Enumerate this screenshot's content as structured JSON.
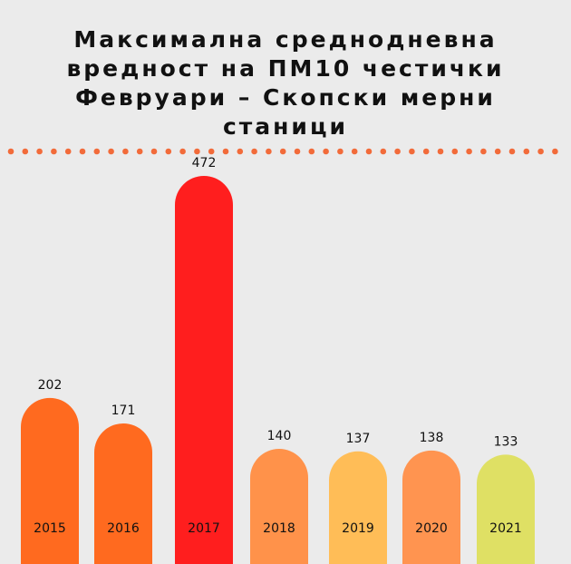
{
  "title_lines": [
    "Максимална среднодневна",
    "вредност на ПМ10 честички",
    "Февруари – Скопски мерни",
    "станици"
  ],
  "colors": {
    "background": "#ebebeb",
    "dots": "#f26b3a"
  },
  "chart_data": {
    "type": "bar",
    "title": "Максимална среднодневна вредност на ПМ10 честички Февруари – Скопски мерни станици",
    "categories": [
      "2015",
      "2016",
      "2017",
      "2018",
      "2019",
      "2020",
      "2021"
    ],
    "values": [
      202,
      171,
      472,
      140,
      137,
      138,
      133
    ],
    "bar_colors": [
      "#ff6a1f",
      "#ff6a1f",
      "#ff1e1e",
      "#ff924a",
      "#ffbd57",
      "#ff9450",
      "#dfe064"
    ],
    "data_labels": [
      "202",
      "171",
      "472",
      "140",
      "137",
      "138",
      "133"
    ],
    "grid": false,
    "legend": "none"
  }
}
